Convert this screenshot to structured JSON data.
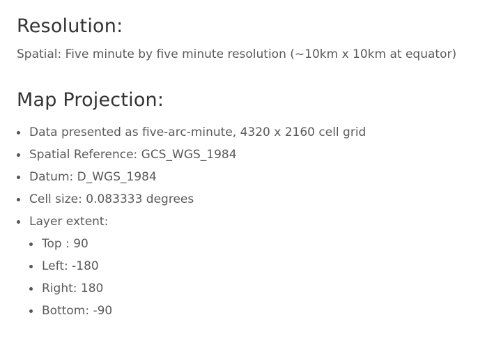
{
  "resolution": {
    "heading": "Resolution:",
    "text": "Spatial: Five minute by five minute resolution (~10km x 10km at equator)"
  },
  "map_projection": {
    "heading": "Map Projection:",
    "items": [
      "Data presented as five-arc-minute, 4320 x 2160 cell grid",
      "Spatial Reference: GCS_WGS_1984",
      "Datum: D_WGS_1984",
      "Cell size: 0.083333 degrees",
      "Layer extent:"
    ],
    "extent_items": [
      "Top : 90",
      "Left: -180",
      "Right: 180",
      "Bottom: -90"
    ]
  }
}
